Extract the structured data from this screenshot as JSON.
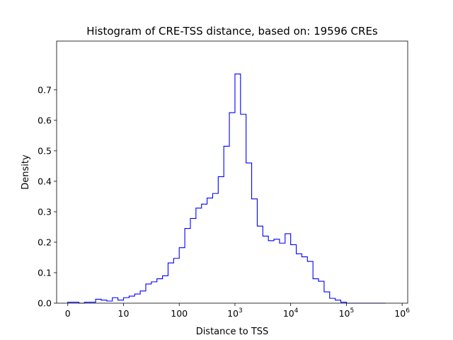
{
  "chart_data": {
    "type": "histogram",
    "title": "Histogram of CRE-TSS distance, based on: 19596 CREs",
    "xlabel": "Distance to TSS",
    "ylabel": "Density",
    "x_scale": "symlog",
    "xlim": [
      -0.2,
      6.1
    ],
    "ylim": [
      0,
      0.86
    ],
    "x_ticks": [
      {
        "value": 0,
        "base": "0",
        "exp": ""
      },
      {
        "value": 1,
        "base": "10",
        "exp": ""
      },
      {
        "value": 2,
        "base": "100",
        "exp": ""
      },
      {
        "value": 3,
        "base": "10",
        "exp": "3"
      },
      {
        "value": 4,
        "base": "10",
        "exp": "4"
      },
      {
        "value": 5,
        "base": "10",
        "exp": "5"
      },
      {
        "value": 6,
        "base": "10",
        "exp": "6"
      }
    ],
    "y_ticks": [
      "0.0",
      "0.1",
      "0.2",
      "0.3",
      "0.4",
      "0.5",
      "0.6",
      "0.7"
    ],
    "y_tick_values": [
      0,
      0.1,
      0.2,
      0.3,
      0.4,
      0.5,
      0.6,
      0.7
    ],
    "bin_edges": [
      0,
      0.1,
      0.2,
      0.3,
      0.4,
      0.5,
      0.6,
      0.7,
      0.8,
      0.9,
      1.0,
      1.1,
      1.2,
      1.3,
      1.4,
      1.5,
      1.6,
      1.7,
      1.8,
      1.9,
      2.0,
      2.1,
      2.2,
      2.3,
      2.4,
      2.5,
      2.6,
      2.7,
      2.8,
      2.9,
      3.0,
      3.1,
      3.2,
      3.3,
      3.4,
      3.5,
      3.6,
      3.7,
      3.8,
      3.9,
      4.0,
      4.1,
      4.2,
      4.3,
      4.4,
      4.5,
      4.6,
      4.7,
      4.8,
      4.9,
      5.0,
      5.1,
      5.2,
      5.3,
      5.4,
      5.5,
      5.6,
      5.7
    ],
    "density": [
      0.003,
      0.003,
      0.0,
      0.003,
      0.003,
      0.013,
      0.01,
      0.007,
      0.018,
      0.01,
      0.018,
      0.023,
      0.03,
      0.04,
      0.063,
      0.07,
      0.08,
      0.09,
      0.132,
      0.147,
      0.182,
      0.245,
      0.278,
      0.312,
      0.325,
      0.345,
      0.36,
      0.415,
      0.515,
      0.625,
      0.752,
      0.62,
      0.46,
      0.342,
      0.253,
      0.22,
      0.205,
      0.21,
      0.197,
      0.228,
      0.192,
      0.162,
      0.152,
      0.137,
      0.08,
      0.072,
      0.037,
      0.016,
      0.01,
      0.003,
      0.0,
      0.0,
      0.0,
      0.0,
      0.0,
      0.0,
      0.0
    ],
    "color": "#0000ff",
    "grid": false,
    "legend": "none"
  }
}
